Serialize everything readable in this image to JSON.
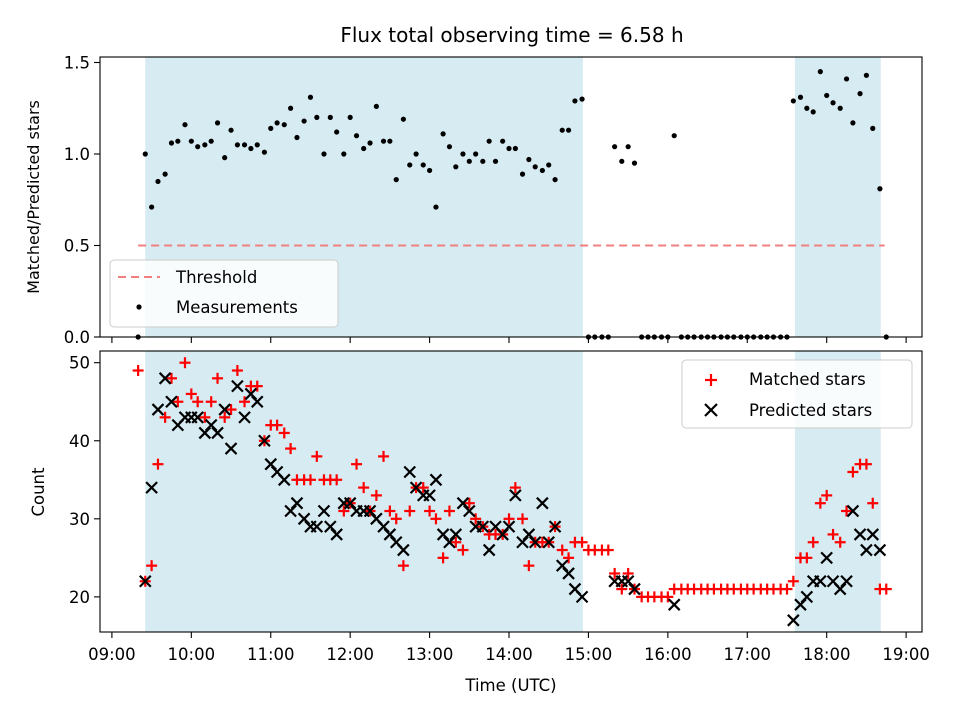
{
  "chart_data": [
    {
      "type": "scatter",
      "title": "Flux total observing time = 6.58 h",
      "ylabel": "Matched/Predicted stars",
      "xlabel": "",
      "x_unit": "hours UTC",
      "xlim": [
        8.85,
        19.2
      ],
      "ylim": [
        0.0,
        1.53
      ],
      "yticks": [
        "0.0",
        "0.5",
        "1.0",
        "1.5"
      ],
      "shaded_intervals": [
        [
          9.42,
          14.93
        ],
        [
          17.6,
          18.68
        ]
      ],
      "threshold": {
        "label": "Threshold",
        "y": 0.5,
        "x_start": 9.33,
        "x_end": 18.73,
        "color": "#f08080"
      },
      "legend": {
        "location": "lower-left",
        "entries": [
          "Threshold",
          "Measurements"
        ]
      },
      "series": [
        {
          "name": "Measurements",
          "color": "#000000",
          "marker": "dot",
          "x": [
            9.33,
            9.42,
            9.5,
            9.58,
            9.67,
            9.75,
            9.83,
            9.92,
            10.0,
            10.08,
            10.17,
            10.25,
            10.33,
            10.42,
            10.5,
            10.58,
            10.67,
            10.75,
            10.83,
            10.92,
            11.0,
            11.08,
            11.17,
            11.25,
            11.33,
            11.42,
            11.5,
            11.58,
            11.67,
            11.75,
            11.83,
            11.92,
            12.0,
            12.08,
            12.17,
            12.25,
            12.33,
            12.42,
            12.5,
            12.58,
            12.67,
            12.75,
            12.83,
            12.92,
            13.0,
            13.08,
            13.17,
            13.25,
            13.33,
            13.42,
            13.5,
            13.58,
            13.67,
            13.75,
            13.83,
            13.92,
            14.0,
            14.08,
            14.17,
            14.25,
            14.33,
            14.42,
            14.5,
            14.58,
            14.67,
            14.75,
            14.83,
            14.92,
            15.0,
            15.08,
            15.17,
            15.25,
            15.33,
            15.42,
            15.5,
            15.58,
            15.67,
            15.75,
            15.83,
            15.92,
            16.0,
            16.08,
            16.17,
            16.25,
            16.33,
            16.42,
            16.5,
            16.58,
            16.67,
            16.75,
            16.83,
            16.92,
            17.0,
            17.08,
            17.17,
            17.25,
            17.33,
            17.42,
            17.5,
            17.58,
            17.67,
            17.75,
            17.83,
            17.92,
            18.0,
            18.08,
            18.17,
            18.25,
            18.33,
            18.42,
            18.5,
            18.58,
            18.67,
            18.75
          ],
          "y": [
            0.0,
            1.0,
            0.71,
            0.85,
            0.89,
            1.06,
            1.07,
            1.16,
            1.07,
            1.04,
            1.05,
            1.07,
            1.17,
            0.98,
            1.13,
            1.05,
            1.05,
            1.03,
            1.05,
            1.01,
            1.14,
            1.17,
            1.16,
            1.25,
            1.09,
            1.18,
            1.31,
            1.2,
            1.0,
            1.2,
            1.12,
            1.0,
            1.2,
            1.1,
            1.03,
            1.06,
            1.26,
            1.07,
            1.07,
            0.86,
            1.19,
            0.94,
            1.0,
            0.94,
            0.91,
            0.71,
            1.11,
            1.04,
            0.93,
            1.0,
            0.96,
            1.0,
            0.96,
            1.07,
            0.96,
            1.07,
            1.03,
            1.03,
            0.89,
            0.97,
            0.93,
            0.91,
            0.94,
            0.86,
            1.13,
            1.13,
            1.29,
            1.3,
            0.0,
            0.0,
            0.0,
            0.0,
            1.04,
            0.96,
            1.04,
            0.95,
            0.0,
            0.0,
            0.0,
            0.0,
            0.0,
            1.1,
            0.0,
            0.0,
            0.0,
            0.0,
            0.0,
            0.0,
            0.0,
            0.0,
            0.0,
            0.0,
            0.0,
            0.0,
            0.0,
            0.0,
            0.0,
            0.0,
            0.0,
            1.29,
            1.31,
            1.25,
            1.23,
            1.45,
            1.32,
            1.28,
            1.25,
            1.41,
            1.17,
            1.33,
            1.43,
            1.14,
            0.81,
            0.0
          ]
        }
      ]
    },
    {
      "type": "scatter",
      "title": "",
      "ylabel": "Count",
      "xlabel": "Time (UTC)",
      "x_unit": "hours UTC",
      "xlim": [
        8.85,
        19.2
      ],
      "ylim": [
        15.5,
        51.5
      ],
      "yticks": [
        "20",
        "30",
        "40",
        "50"
      ],
      "xticks": [
        "09:00",
        "10:00",
        "11:00",
        "12:00",
        "13:00",
        "14:00",
        "15:00",
        "16:00",
        "17:00",
        "18:00",
        "19:00"
      ],
      "shaded_intervals": [
        [
          9.42,
          14.93
        ],
        [
          17.6,
          18.68
        ]
      ],
      "legend": {
        "location": "top-right",
        "entries": [
          "Matched stars",
          "Predicted stars"
        ]
      },
      "series": [
        {
          "name": "Matched stars",
          "color": "#ff0000",
          "marker": "plus",
          "x": [
            9.33,
            9.42,
            9.5,
            9.58,
            9.67,
            9.75,
            9.83,
            9.92,
            10.0,
            10.08,
            10.17,
            10.25,
            10.33,
            10.42,
            10.5,
            10.58,
            10.67,
            10.75,
            10.83,
            10.92,
            11.0,
            11.08,
            11.17,
            11.25,
            11.33,
            11.42,
            11.5,
            11.58,
            11.67,
            11.75,
            11.83,
            11.92,
            12.0,
            12.08,
            12.17,
            12.25,
            12.33,
            12.42,
            12.5,
            12.58,
            12.67,
            12.75,
            12.83,
            12.92,
            13.0,
            13.08,
            13.17,
            13.25,
            13.33,
            13.42,
            13.5,
            13.58,
            13.67,
            13.75,
            13.83,
            13.92,
            14.0,
            14.08,
            14.17,
            14.25,
            14.33,
            14.42,
            14.5,
            14.58,
            14.67,
            14.75,
            14.83,
            14.92,
            15.0,
            15.08,
            15.17,
            15.25,
            15.33,
            15.42,
            15.5,
            15.58,
            15.67,
            15.75,
            15.83,
            15.92,
            16.0,
            16.08,
            16.17,
            16.25,
            16.33,
            16.42,
            16.5,
            16.58,
            16.67,
            16.75,
            16.83,
            16.92,
            17.0,
            17.08,
            17.17,
            17.25,
            17.33,
            17.42,
            17.5,
            17.58,
            17.67,
            17.75,
            17.83,
            17.92,
            18.0,
            18.08,
            18.17,
            18.25,
            18.33,
            18.42,
            18.5,
            18.58,
            18.67,
            18.75
          ],
          "y": [
            49,
            22,
            24,
            37,
            43,
            48,
            45,
            50,
            46,
            45,
            43,
            45,
            48,
            43,
            44,
            49,
            45,
            47,
            47,
            40,
            42,
            42,
            41,
            39,
            35,
            35,
            35,
            38,
            35,
            35,
            35,
            31,
            32,
            37,
            34,
            31,
            33,
            38,
            31,
            30,
            24,
            31,
            34,
            34,
            31,
            30,
            25,
            31,
            27,
            26,
            32,
            30,
            29,
            28,
            28,
            28,
            30,
            34,
            30,
            24,
            27,
            27,
            27,
            29,
            26,
            25,
            27,
            27,
            26,
            26,
            26,
            26,
            23,
            21,
            23,
            21,
            20,
            20,
            20,
            20,
            20,
            21,
            21,
            21,
            21,
            21,
            21,
            21,
            21,
            21,
            21,
            21,
            21,
            21,
            21,
            21,
            21,
            21,
            21,
            22,
            25,
            25,
            27,
            32,
            33,
            28,
            27,
            31,
            36,
            37,
            37,
            32,
            21,
            21
          ]
        },
        {
          "name": "Predicted stars",
          "color": "#000000",
          "marker": "x",
          "x": [
            9.42,
            9.5,
            9.58,
            9.67,
            9.75,
            9.83,
            9.92,
            10.0,
            10.08,
            10.17,
            10.25,
            10.33,
            10.42,
            10.5,
            10.58,
            10.67,
            10.75,
            10.83,
            10.92,
            11.0,
            11.08,
            11.17,
            11.25,
            11.33,
            11.42,
            11.5,
            11.58,
            11.67,
            11.75,
            11.83,
            11.92,
            12.0,
            12.08,
            12.17,
            12.25,
            12.33,
            12.42,
            12.5,
            12.58,
            12.67,
            12.75,
            12.83,
            12.92,
            13.0,
            13.08,
            13.17,
            13.25,
            13.33,
            13.42,
            13.5,
            13.58,
            13.67,
            13.75,
            13.83,
            13.92,
            14.0,
            14.08,
            14.17,
            14.25,
            14.33,
            14.42,
            14.5,
            14.58,
            14.67,
            14.75,
            14.83,
            14.92,
            15.33,
            15.42,
            15.5,
            15.58,
            16.08,
            17.58,
            17.67,
            17.75,
            17.83,
            17.92,
            18.0,
            18.08,
            18.17,
            18.25,
            18.33,
            18.42,
            18.5,
            18.58,
            18.67
          ],
          "y": [
            22,
            34,
            44,
            48,
            45,
            42,
            43,
            43,
            43,
            41,
            42,
            41,
            44,
            39,
            47,
            43,
            46,
            45,
            40,
            37,
            36,
            35,
            31,
            32,
            30,
            29,
            29,
            31,
            29,
            28,
            32,
            32,
            31,
            31,
            31,
            30,
            29,
            28,
            27,
            26,
            36,
            34,
            33,
            33,
            35,
            28,
            27,
            28,
            32,
            31,
            29,
            29,
            26,
            29,
            28,
            29,
            33,
            27,
            28,
            27,
            32,
            27,
            29,
            24,
            23,
            21,
            20,
            22,
            22,
            22,
            21,
            19,
            17,
            19,
            20,
            22,
            22,
            25,
            22,
            21,
            22,
            31,
            28,
            26,
            28,
            26
          ]
        }
      ]
    }
  ]
}
